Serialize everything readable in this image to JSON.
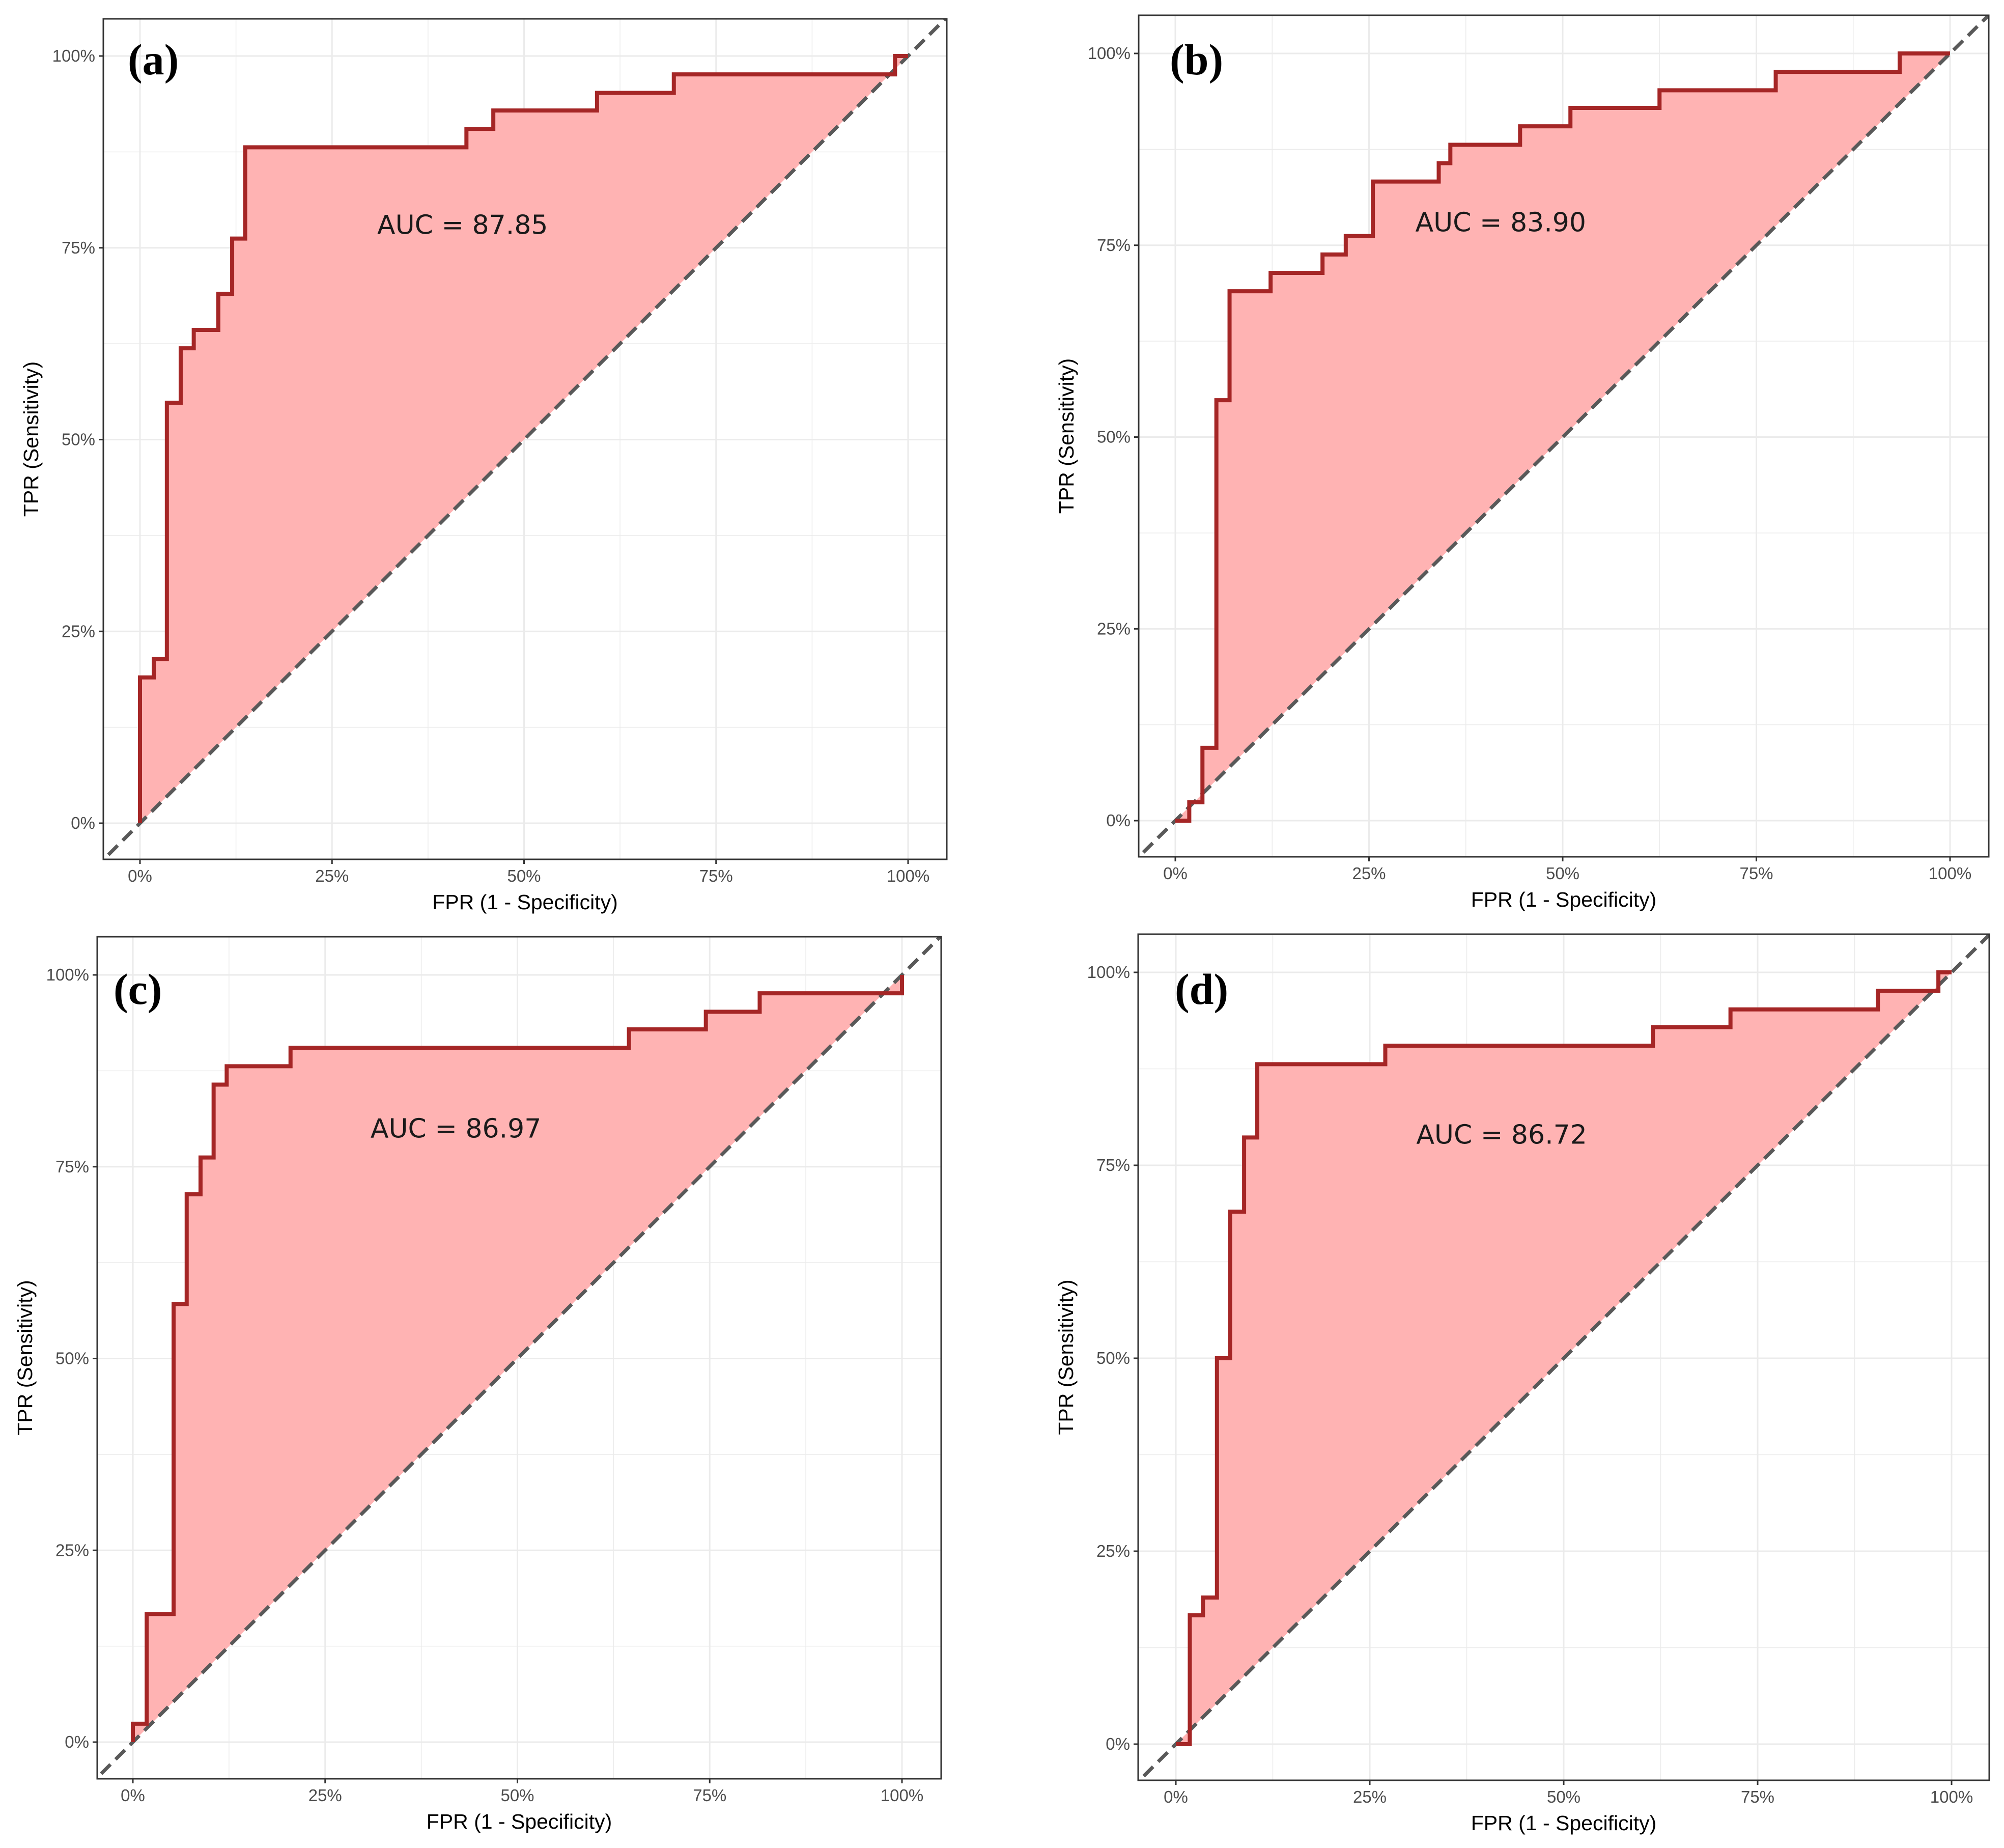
{
  "chart_data": [
    {
      "type": "line",
      "panel_label": "(a)",
      "annotation": "AUC = 87.85",
      "xlabel": "FPR (1 - Specificity)",
      "ylabel": "TPR (Sensitivity)",
      "xlim": [
        0,
        1
      ],
      "ylim": [
        0,
        1
      ],
      "x_ticks": [
        "0%",
        "25%",
        "50%",
        "75%",
        "100%"
      ],
      "y_ticks": [
        "0%",
        "25%",
        "50%",
        "75%",
        "100%"
      ],
      "grid": true,
      "reference_line": "diagonal",
      "series": [
        {
          "x": [
            0.0,
            0.0,
            0.018,
            0.018,
            0.035,
            0.035,
            0.053,
            0.053,
            0.07,
            0.07,
            0.102,
            0.102,
            0.12,
            0.12,
            0.137,
            0.137,
            0.425,
            0.425,
            0.46,
            0.46,
            0.595,
            0.595,
            0.695,
            0.695,
            0.983,
            0.983,
            1.0
          ],
          "y": [
            0.0,
            0.19,
            0.19,
            0.214,
            0.214,
            0.548,
            0.548,
            0.619,
            0.619,
            0.643,
            0.643,
            0.69,
            0.69,
            0.762,
            0.762,
            0.881,
            0.881,
            0.905,
            0.905,
            0.929,
            0.929,
            0.952,
            0.952,
            0.976,
            0.976,
            1.0,
            1.0
          ]
        }
      ]
    },
    {
      "type": "line",
      "panel_label": "(b)",
      "annotation": "AUC = 83.90",
      "xlabel": "FPR (1 - Specificity)",
      "ylabel": "TPR (Sensitivity)",
      "xlim": [
        0,
        1
      ],
      "ylim": [
        0,
        1
      ],
      "x_ticks": [
        "0%",
        "25%",
        "50%",
        "75%",
        "100%"
      ],
      "y_ticks": [
        "0%",
        "25%",
        "50%",
        "75%",
        "100%"
      ],
      "grid": true,
      "reference_line": "diagonal",
      "series": [
        {
          "x": [
            0.0,
            0.018,
            0.018,
            0.035,
            0.035,
            0.053,
            0.053,
            0.07,
            0.07,
            0.123,
            0.123,
            0.19,
            0.19,
            0.22,
            0.22,
            0.255,
            0.255,
            0.34,
            0.34,
            0.355,
            0.355,
            0.445,
            0.445,
            0.51,
            0.51,
            0.625,
            0.625,
            0.775,
            0.775,
            0.935,
            0.935,
            1.0
          ],
          "y": [
            0.0,
            0.0,
            0.024,
            0.024,
            0.095,
            0.095,
            0.548,
            0.548,
            0.69,
            0.69,
            0.714,
            0.714,
            0.738,
            0.738,
            0.762,
            0.762,
            0.833,
            0.833,
            0.857,
            0.857,
            0.881,
            0.881,
            0.905,
            0.905,
            0.929,
            0.929,
            0.952,
            0.952,
            0.976,
            0.976,
            1.0,
            1.0
          ]
        }
      ]
    },
    {
      "type": "line",
      "panel_label": "(c)",
      "annotation": "AUC = 86.97",
      "xlabel": "FPR (1 - Specificity)",
      "ylabel": "TPR (Sensitivity)",
      "xlim": [
        0,
        1
      ],
      "ylim": [
        0,
        1
      ],
      "x_ticks": [
        "0%",
        "25%",
        "50%",
        "75%",
        "100%"
      ],
      "y_ticks": [
        "0%",
        "25%",
        "50%",
        "75%",
        "100%"
      ],
      "grid": true,
      "reference_line": "diagonal",
      "series": [
        {
          "x": [
            0.0,
            0.0,
            0.018,
            0.018,
            0.053,
            0.053,
            0.07,
            0.07,
            0.088,
            0.088,
            0.105,
            0.105,
            0.122,
            0.122,
            0.205,
            0.205,
            0.645,
            0.645,
            0.745,
            0.745,
            0.815,
            0.815,
            1.0,
            1.0
          ],
          "y": [
            0.0,
            0.024,
            0.024,
            0.167,
            0.167,
            0.571,
            0.571,
            0.714,
            0.714,
            0.762,
            0.762,
            0.857,
            0.857,
            0.881,
            0.881,
            0.905,
            0.905,
            0.929,
            0.929,
            0.952,
            0.952,
            0.976,
            0.976,
            1.0
          ]
        }
      ]
    },
    {
      "type": "line",
      "panel_label": "(d)",
      "annotation": "AUC = 86.72",
      "xlabel": "FPR (1 - Specificity)",
      "ylabel": "TPR (Sensitivity)",
      "xlim": [
        0,
        1
      ],
      "ylim": [
        0,
        1
      ],
      "x_ticks": [
        "0%",
        "25%",
        "50%",
        "75%",
        "100%"
      ],
      "y_ticks": [
        "0%",
        "25%",
        "50%",
        "75%",
        "100%"
      ],
      "grid": true,
      "reference_line": "diagonal",
      "series": [
        {
          "x": [
            0.0,
            0.018,
            0.018,
            0.035,
            0.035,
            0.053,
            0.053,
            0.07,
            0.07,
            0.088,
            0.088,
            0.105,
            0.105,
            0.27,
            0.27,
            0.615,
            0.615,
            0.715,
            0.715,
            0.905,
            0.905,
            0.983,
            0.983,
            1.0
          ],
          "y": [
            0.0,
            0.0,
            0.167,
            0.167,
            0.19,
            0.19,
            0.5,
            0.5,
            0.69,
            0.69,
            0.786,
            0.786,
            0.881,
            0.881,
            0.905,
            0.905,
            0.929,
            0.929,
            0.952,
            0.952,
            0.976,
            0.976,
            1.0,
            1.0
          ]
        }
      ]
    }
  ],
  "colors": {
    "curve": "#a52626",
    "fill": "#ffb3b3",
    "reference_line": "#595959",
    "grid": "#ebebeb",
    "panel_border": "#333333"
  }
}
